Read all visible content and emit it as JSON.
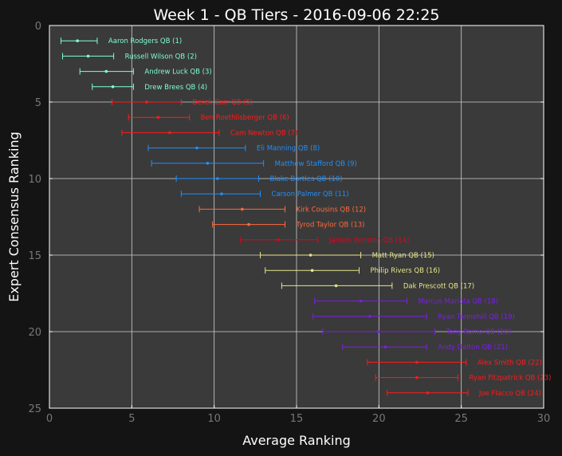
{
  "chart_data": {
    "type": "scatter",
    "title": "Week 1 - QB Tiers - 2016-09-06 22:25",
    "xlabel": "Average Ranking",
    "ylabel": "Expert Consensus Ranking",
    "xlim": [
      0,
      30
    ],
    "ylim": [
      25,
      0
    ],
    "x_ticks": [
      "0",
      "5",
      "10",
      "15",
      "20",
      "25",
      "30"
    ],
    "y_ticks": [
      "0",
      "5",
      "10",
      "15",
      "20",
      "25"
    ],
    "grid": true,
    "colors": {
      "background": "#141414",
      "plot_bg": "#3a3a3a",
      "grid": "#cfcfcf"
    },
    "tier_colors": [
      "#7fffd4",
      "#ff1a1a",
      "#1e90ff",
      "#ff6a3d",
      "#e8001c",
      "#e6e68a",
      "#7a1fe6",
      "#ff1a1a"
    ],
    "points": [
      {
        "rank": 1,
        "label": "Aaron Rodgers QB (1)",
        "avg": 1.7,
        "lo": 0.7,
        "hi": 2.9,
        "tier": 0
      },
      {
        "rank": 2,
        "label": "Russell Wilson QB (2)",
        "avg": 2.35,
        "lo": 0.8,
        "hi": 3.9,
        "tier": 0
      },
      {
        "rank": 3,
        "label": "Andrew Luck QB (3)",
        "avg": 3.45,
        "lo": 1.85,
        "hi": 5.1,
        "tier": 0
      },
      {
        "rank": 4,
        "label": "Drew Brees QB (4)",
        "avg": 3.85,
        "lo": 2.6,
        "hi": 5.1,
        "tier": 0
      },
      {
        "rank": 5,
        "label": "Derek Carr QB (5)",
        "avg": 5.9,
        "lo": 3.8,
        "hi": 8.0,
        "tier": 1
      },
      {
        "rank": 6,
        "label": "Ben Roethlisberger QB (6)",
        "avg": 6.6,
        "lo": 4.8,
        "hi": 8.5,
        "tier": 1
      },
      {
        "rank": 7,
        "label": "Cam Newton QB (7)",
        "avg": 7.3,
        "lo": 4.4,
        "hi": 10.3,
        "tier": 1
      },
      {
        "rank": 8,
        "label": "Eli Manning QB (8)",
        "avg": 8.95,
        "lo": 6.0,
        "hi": 11.9,
        "tier": 2
      },
      {
        "rank": 9,
        "label": "Matthew Stafford QB (9)",
        "avg": 9.6,
        "lo": 6.2,
        "hi": 13.0,
        "tier": 2
      },
      {
        "rank": 10,
        "label": "Blake Bortles QB (10)",
        "avg": 10.2,
        "lo": 7.7,
        "hi": 12.7,
        "tier": 2
      },
      {
        "rank": 11,
        "label": "Carson Palmer QB (11)",
        "avg": 10.45,
        "lo": 8.0,
        "hi": 12.8,
        "tier": 2
      },
      {
        "rank": 12,
        "label": "Kirk Cousins QB (12)",
        "avg": 11.7,
        "lo": 9.1,
        "hi": 14.3,
        "tier": 3
      },
      {
        "rank": 13,
        "label": "Tyrod Taylor QB (13)",
        "avg": 12.1,
        "lo": 9.9,
        "hi": 14.3,
        "tier": 3
      },
      {
        "rank": 14,
        "label": "Jameis Winston QB (14)",
        "avg": 13.9,
        "lo": 11.6,
        "hi": 16.3,
        "tier": 4
      },
      {
        "rank": 15,
        "label": "Matt Ryan QB (15)",
        "avg": 15.85,
        "lo": 12.8,
        "hi": 18.9,
        "tier": 5
      },
      {
        "rank": 16,
        "label": "Philip Rivers QB (16)",
        "avg": 15.95,
        "lo": 13.1,
        "hi": 18.8,
        "tier": 5
      },
      {
        "rank": 17,
        "label": "Dak Prescott QB (17)",
        "avg": 17.4,
        "lo": 14.1,
        "hi": 20.8,
        "tier": 5
      },
      {
        "rank": 18,
        "label": "Marcus Mariota QB (18)",
        "avg": 18.9,
        "lo": 16.1,
        "hi": 21.7,
        "tier": 6
      },
      {
        "rank": 19,
        "label": "Ryan Tannehill QB (19)",
        "avg": 19.45,
        "lo": 16.0,
        "hi": 22.9,
        "tier": 6
      },
      {
        "rank": 20,
        "label": "Tony Romo QB (20)",
        "avg": 19.95,
        "lo": 16.6,
        "hi": 23.4,
        "tier": 6
      },
      {
        "rank": 21,
        "label": "Andy Dalton QB (21)",
        "avg": 20.4,
        "lo": 17.8,
        "hi": 22.9,
        "tier": 6
      },
      {
        "rank": 22,
        "label": "Alex Smith QB (22)",
        "avg": 22.3,
        "lo": 19.3,
        "hi": 25.3,
        "tier": 7
      },
      {
        "rank": 23,
        "label": "Ryan Fitzpatrick QB (23)",
        "avg": 22.3,
        "lo": 19.8,
        "hi": 24.8,
        "tier": 7
      },
      {
        "rank": 24,
        "label": "Joe Flacco QB (24)",
        "avg": 22.95,
        "lo": 20.5,
        "hi": 25.4,
        "tier": 7
      }
    ]
  }
}
